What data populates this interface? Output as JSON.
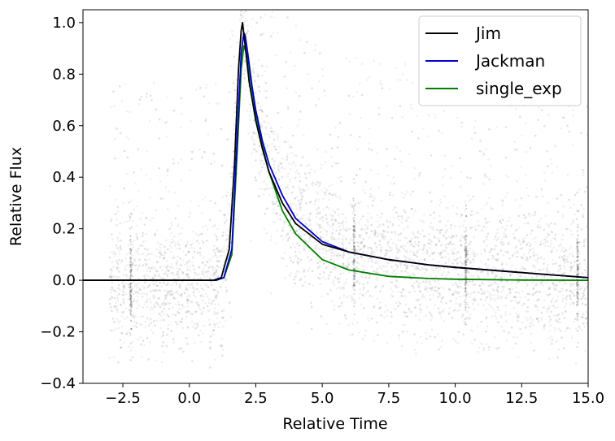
{
  "chart_data": {
    "type": "line",
    "title": "",
    "xlabel": "Relative Time",
    "ylabel": "Relative Flux",
    "xlim": [
      -4.0,
      15.0
    ],
    "ylim": [
      -0.4,
      1.05
    ],
    "xticks": [
      -2.5,
      0.0,
      2.5,
      5.0,
      7.5,
      10.0,
      12.5,
      15.0
    ],
    "xtick_labels": [
      "−2.5",
      "0.0",
      "2.5",
      "5.0",
      "7.5",
      "10.0",
      "12.5",
      "15.0"
    ],
    "yticks": [
      -0.4,
      -0.2,
      0.0,
      0.2,
      0.4,
      0.6,
      0.8,
      1.0
    ],
    "ytick_labels": [
      "−0.4",
      "−0.2",
      "0.0",
      "0.2",
      "0.4",
      "0.6",
      "0.8",
      "1.0"
    ],
    "grid": false,
    "legend_position": "top-right",
    "scatter_background": {
      "description_color": "#808080",
      "x_range": [
        -3.0,
        15.0
      ],
      "spread_sigma": 0.12,
      "band_spikes_x": [
        -2.2,
        6.2,
        10.4,
        14.6
      ]
    },
    "series": [
      {
        "name": "Jim",
        "color": "#000000",
        "x": [
          -4.0,
          0.0,
          0.9,
          1.2,
          1.5,
          1.7,
          1.85,
          1.95,
          2.0,
          2.1,
          2.25,
          2.5,
          2.75,
          3.0,
          3.5,
          4.0,
          5.0,
          6.0,
          7.5,
          9.0,
          10.0,
          12.5,
          15.0
        ],
        "y": [
          0.0,
          0.0,
          0.0,
          0.01,
          0.12,
          0.45,
          0.82,
          0.97,
          1.0,
          0.91,
          0.77,
          0.62,
          0.51,
          0.42,
          0.3,
          0.22,
          0.14,
          0.11,
          0.08,
          0.06,
          0.05,
          0.03,
          0.01
        ]
      },
      {
        "name": "Jackman",
        "color": "#0000cc",
        "x": [
          -4.0,
          0.0,
          1.0,
          1.3,
          1.6,
          1.8,
          1.95,
          2.05,
          2.1,
          2.2,
          2.35,
          2.5,
          2.75,
          3.0,
          3.5,
          4.0,
          5.0,
          6.0,
          7.5,
          9.0,
          10.0,
          12.5,
          15.0
        ],
        "y": [
          0.0,
          0.0,
          0.0,
          0.01,
          0.12,
          0.55,
          0.88,
          0.96,
          0.95,
          0.88,
          0.76,
          0.66,
          0.54,
          0.45,
          0.33,
          0.24,
          0.15,
          0.11,
          0.08,
          0.06,
          0.05,
          0.03,
          0.01
        ]
      },
      {
        "name": "single_exp",
        "color": "#008000",
        "x": [
          -4.0,
          0.0,
          1.0,
          1.3,
          1.6,
          1.8,
          1.95,
          2.05,
          2.15,
          2.3,
          2.5,
          2.75,
          3.0,
          3.5,
          4.0,
          5.0,
          6.0,
          7.5,
          9.0,
          10.0,
          12.5,
          15.0
        ],
        "y": [
          0.0,
          0.0,
          0.0,
          0.01,
          0.1,
          0.5,
          0.82,
          0.91,
          0.88,
          0.78,
          0.65,
          0.52,
          0.42,
          0.27,
          0.18,
          0.08,
          0.04,
          0.015,
          0.007,
          0.004,
          0.001,
          0.0
        ]
      }
    ]
  }
}
